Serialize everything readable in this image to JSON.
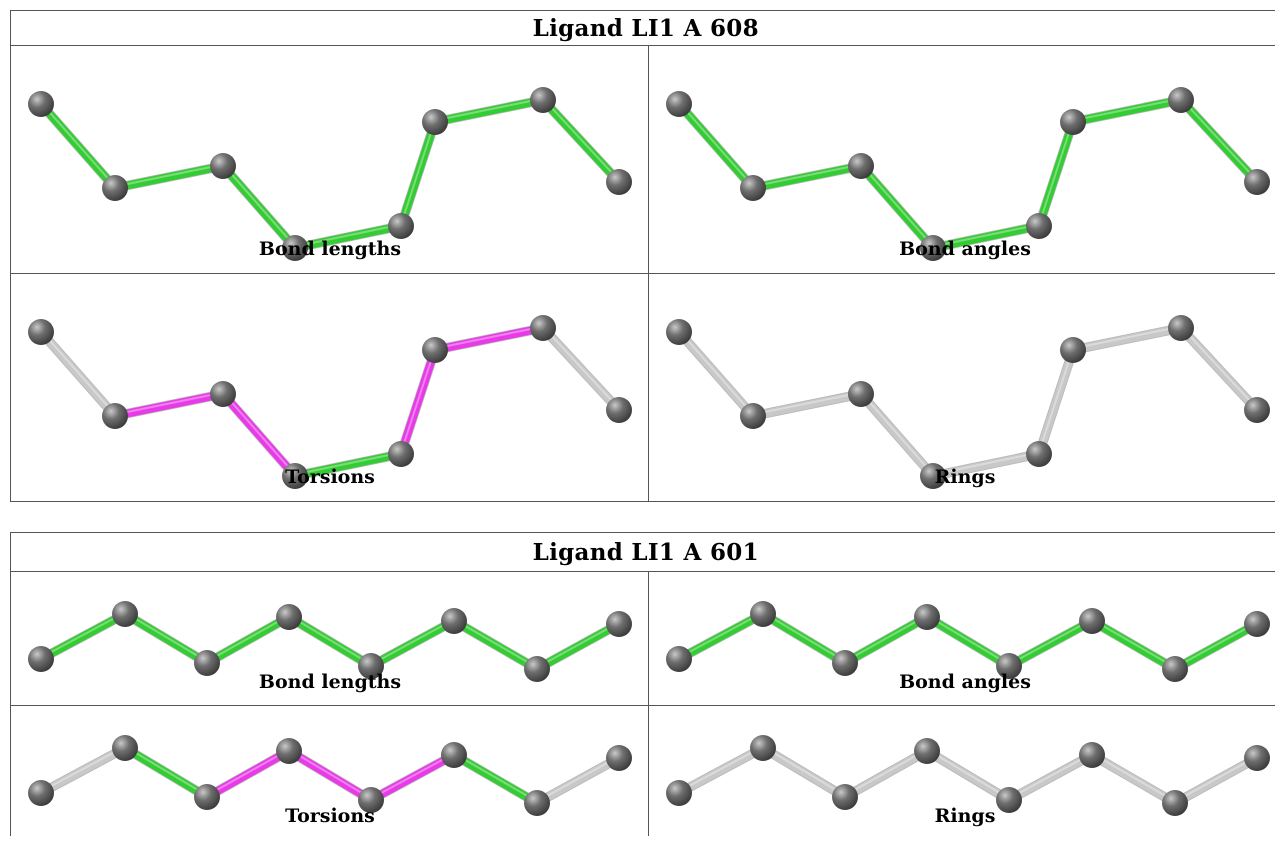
{
  "colors": {
    "ok": "#33cc33",
    "outlier": "#e83ae8",
    "neutral": "#c8c8c8",
    "atom": "#6e6e6e"
  },
  "ligands": [
    {
      "title": "Ligand LI1 A 608",
      "panels": [
        {
          "caption": "Bond lengths",
          "bond_colors": [
            "ok",
            "ok",
            "ok",
            "ok",
            "ok",
            "ok",
            "ok"
          ]
        },
        {
          "caption": "Bond angles",
          "bond_colors": [
            "ok",
            "ok",
            "ok",
            "ok",
            "ok",
            "ok",
            "ok"
          ]
        },
        {
          "caption": "Torsions",
          "bond_colors": [
            "neutral",
            "outlier",
            "outlier",
            "ok",
            "outlier",
            "outlier",
            "neutral"
          ]
        },
        {
          "caption": "Rings",
          "bond_colors": [
            "neutral",
            "neutral",
            "neutral",
            "neutral",
            "neutral",
            "neutral",
            "neutral"
          ]
        }
      ]
    },
    {
      "title": "Ligand LI1 A 601",
      "panels": [
        {
          "caption": "Bond lengths",
          "bond_colors": [
            "ok",
            "ok",
            "ok",
            "ok",
            "ok",
            "ok",
            "ok"
          ]
        },
        {
          "caption": "Bond angles",
          "bond_colors": [
            "ok",
            "ok",
            "ok",
            "ok",
            "ok",
            "ok",
            "ok"
          ]
        },
        {
          "caption": "Torsions",
          "bond_colors": [
            "neutral",
            "ok",
            "outlier",
            "outlier",
            "outlier",
            "ok",
            "neutral"
          ]
        },
        {
          "caption": "Rings",
          "bond_colors": [
            "neutral",
            "neutral",
            "neutral",
            "neutral",
            "neutral",
            "neutral",
            "neutral"
          ]
        }
      ]
    }
  ]
}
